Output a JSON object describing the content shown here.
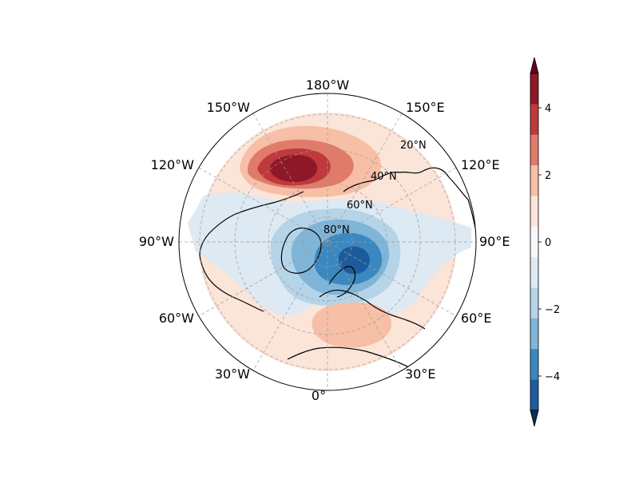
{
  "map": {
    "projection": "north-polar-stereographic",
    "longitude_labels": [
      {
        "id": "180w",
        "text": "180°W"
      },
      {
        "id": "150e",
        "text": "150°E"
      },
      {
        "id": "120e",
        "text": "120°E"
      },
      {
        "id": "90e",
        "text": "90°E"
      },
      {
        "id": "60e",
        "text": "60°E"
      },
      {
        "id": "30e",
        "text": "30°E"
      },
      {
        "id": "0",
        "text": "0°"
      },
      {
        "id": "30w",
        "text": "30°W"
      },
      {
        "id": "60w",
        "text": "60°W"
      },
      {
        "id": "90w",
        "text": "90°W"
      },
      {
        "id": "120w",
        "text": "120°W"
      },
      {
        "id": "150w",
        "text": "150°W"
      }
    ],
    "latitude_labels": [
      {
        "id": "20n",
        "text": "20°N"
      },
      {
        "id": "40n",
        "text": "40°N"
      },
      {
        "id": "60n",
        "text": "60°N"
      },
      {
        "id": "80n",
        "text": "80°N"
      }
    ],
    "gridlines": true,
    "coastlines": true
  },
  "colorbar": {
    "ticks": [
      "4",
      "2",
      "0",
      "−2",
      "−4"
    ],
    "levels": [
      -5,
      -4,
      -3,
      -2,
      -1,
      1,
      2,
      3,
      4,
      5
    ],
    "extend": "both",
    "colors": {
      "above": "#67001f",
      "b4_5": "#8e1728",
      "b3_4": "#c0393c",
      "b2_3": "#e07b6a",
      "b1_2": "#f6bfa6",
      "b0_1": "#fbe4d8",
      "bm1_1": "#f7f7f7",
      "bm1_0": "#dde9f3",
      "bm2_1": "#b6d4e8",
      "bm3_2": "#7fb5d8",
      "bm4_3": "#3b88c0",
      "bm5_4": "#1c5c9e",
      "below": "#053061"
    }
  },
  "chart_data": {
    "type": "heatmap",
    "description_free": true,
    "anomaly_centers": [
      {
        "lat": 48,
        "lon": -160,
        "value": 5,
        "sign": "positive"
      },
      {
        "lat": 72,
        "lon": 70,
        "value": -4,
        "sign": "negative"
      },
      {
        "lat": 42,
        "lon": 15,
        "value": 2,
        "sign": "positive"
      }
    ],
    "colorbar_range": [
      -5,
      5
    ]
  }
}
